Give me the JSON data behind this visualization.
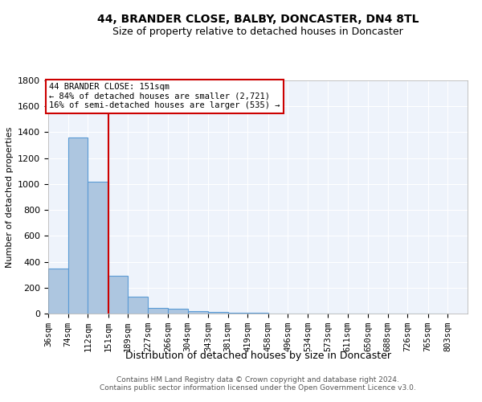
{
  "title1": "44, BRANDER CLOSE, BALBY, DONCASTER, DN4 8TL",
  "title2": "Size of property relative to detached houses in Doncaster",
  "xlabel": "Distribution of detached houses by size in Doncaster",
  "ylabel": "Number of detached properties",
  "bin_edges": [
    36,
    74,
    112,
    151,
    189,
    227,
    266,
    304,
    343,
    381,
    419,
    458,
    496,
    534,
    573,
    611,
    650,
    688,
    726,
    765,
    803
  ],
  "bar_heights": [
    350,
    1360,
    1020,
    290,
    130,
    45,
    35,
    20,
    15,
    8,
    5,
    3,
    3,
    2,
    2,
    1,
    1,
    1,
    1,
    1
  ],
  "bar_color": "#adc6e0",
  "bar_edge_color": "#5b9bd5",
  "background_color": "#eef3fb",
  "red_line_x": 151,
  "annotation_title": "44 BRANDER CLOSE: 151sqm",
  "annotation_line1": "← 84% of detached houses are smaller (2,721)",
  "annotation_line2": "16% of semi-detached houses are larger (535) →",
  "annotation_box_color": "#ffffff",
  "annotation_box_edge": "#cc0000",
  "red_line_color": "#cc0000",
  "footer1": "Contains HM Land Registry data © Crown copyright and database right 2024.",
  "footer2": "Contains public sector information licensed under the Open Government Licence v3.0.",
  "ylim": [
    0,
    1800
  ],
  "yticks": [
    0,
    200,
    400,
    600,
    800,
    1000,
    1200,
    1400,
    1600,
    1800
  ],
  "title1_fontsize": 10,
  "title2_fontsize": 9,
  "ylabel_fontsize": 8,
  "xlabel_fontsize": 9,
  "tick_fontsize": 7.5,
  "footer_fontsize": 6.5
}
